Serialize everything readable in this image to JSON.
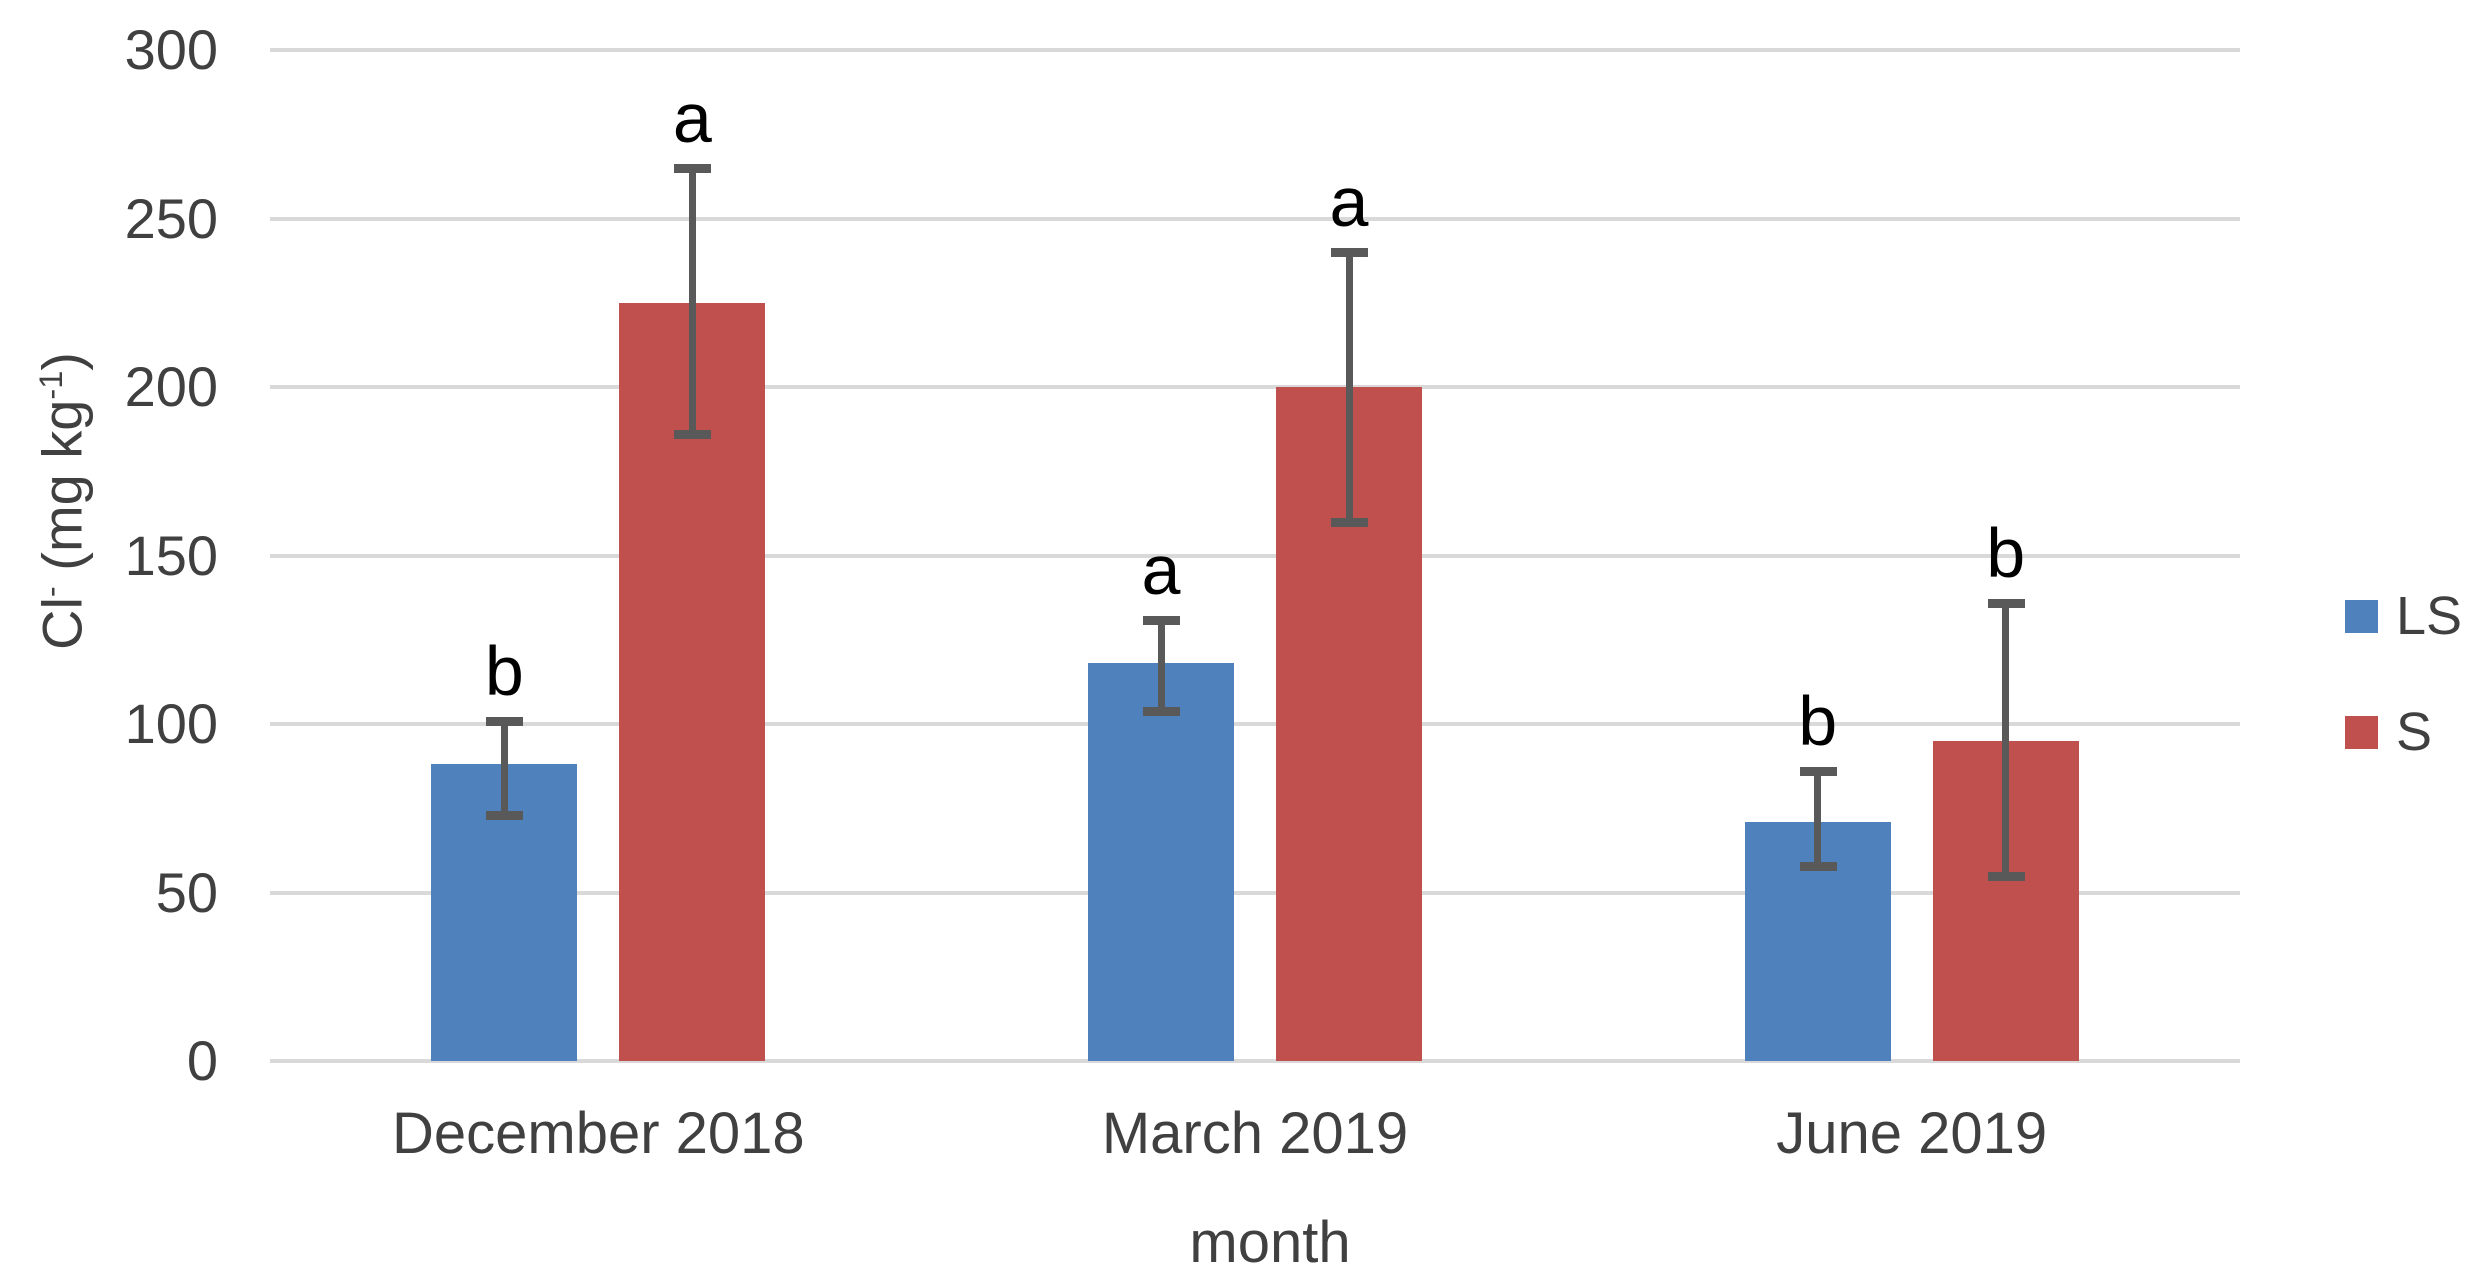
{
  "chart_data": {
    "type": "bar",
    "title": "",
    "categories": [
      "December 2018",
      "March 2019",
      "June 2019"
    ],
    "series": [
      {
        "name": "LS",
        "color": "#4F81BD",
        "values": [
          88,
          118,
          71
        ],
        "error_low": [
          73,
          104,
          58
        ],
        "error_high": [
          101,
          131,
          86
        ],
        "letters": [
          "b",
          "a",
          "b"
        ]
      },
      {
        "name": "S",
        "color": "#C0504D",
        "values": [
          225,
          200,
          95
        ],
        "error_low": [
          186,
          160,
          55
        ],
        "error_high": [
          265,
          240,
          136
        ],
        "letters": [
          "a",
          "a",
          "b"
        ]
      }
    ],
    "xlabel": "month",
    "ylabel": "Cl- (mg kg-1)",
    "ylabel_parts": {
      "base": "Cl",
      "sup1": "-",
      "mid": " (mg kg",
      "sup2": "-1",
      "end": ")"
    },
    "ylim": [
      0,
      300
    ],
    "yticks": [
      0,
      50,
      100,
      150,
      200,
      250,
      300
    ],
    "ytick_interval": 50,
    "grid": true,
    "legend_position": "right",
    "background": "#FFFFFF",
    "gridline_color": "#D9D9D9",
    "error_bar_color": "#595959",
    "text_color": "#404040",
    "letter_color": "#000000"
  }
}
